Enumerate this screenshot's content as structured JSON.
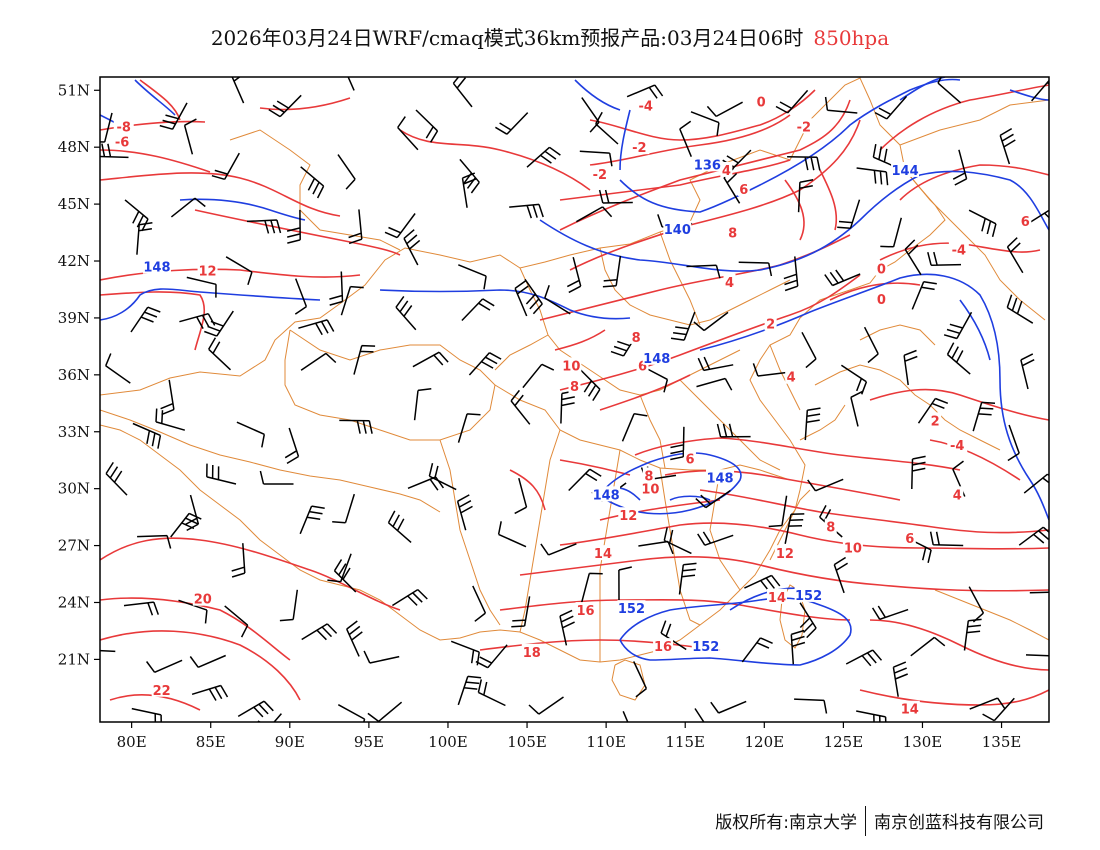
{
  "title": {
    "main": "2026年03月24日WRF/cmaq模式36km预报产品:03月24日06时",
    "level": "850hpa"
  },
  "axes": {
    "lat_labels": [
      "51N",
      "48N",
      "45N",
      "42N",
      "39N",
      "36N",
      "33N",
      "30N",
      "27N",
      "24N",
      "21N"
    ],
    "lon_labels": [
      "80E",
      "85E",
      "90E",
      "95E",
      "100E",
      "105E",
      "110E",
      "115E",
      "120E",
      "125E",
      "130E",
      "135E"
    ],
    "lon_range": [
      78,
      138
    ],
    "lat_range": [
      17.7,
      51.7
    ]
  },
  "contours": {
    "temperature_color": "#e8393a",
    "height_color": "#1f3ee0",
    "wind_color": "#000000",
    "border_color": "#e08a3a",
    "temperature_labels": [
      {
        "text": "-8",
        "lon": 79.5,
        "lat": 49.1
      },
      {
        "text": "-6",
        "lon": 79.4,
        "lat": 48.3
      },
      {
        "text": "-4",
        "lon": 112.5,
        "lat": 50.2
      },
      {
        "text": "0",
        "lon": 119.8,
        "lat": 50.4
      },
      {
        "text": "-2",
        "lon": 122.5,
        "lat": 49.1
      },
      {
        "text": "-2",
        "lon": 112.1,
        "lat": 48.0
      },
      {
        "text": "-2",
        "lon": 109.6,
        "lat": 46.6
      },
      {
        "text": "4",
        "lon": 117.6,
        "lat": 46.8
      },
      {
        "text": "6",
        "lon": 118.7,
        "lat": 45.8
      },
      {
        "text": "8",
        "lon": 118.0,
        "lat": 43.5
      },
      {
        "text": "4",
        "lon": 117.8,
        "lat": 40.9
      },
      {
        "text": "2",
        "lon": 120.4,
        "lat": 38.7
      },
      {
        "text": "4",
        "lon": 121.7,
        "lat": 35.9
      },
      {
        "text": "-4",
        "lon": 132.3,
        "lat": 42.6
      },
      {
        "text": "0",
        "lon": 127.4,
        "lat": 41.6
      },
      {
        "text": "0",
        "lon": 127.4,
        "lat": 40.0
      },
      {
        "text": "2",
        "lon": 130.8,
        "lat": 33.6
      },
      {
        "text": "-4",
        "lon": 132.2,
        "lat": 32.3
      },
      {
        "text": "6",
        "lon": 136.5,
        "lat": 44.1
      },
      {
        "text": "4",
        "lon": 132.2,
        "lat": 29.7
      },
      {
        "text": "12",
        "lon": 84.8,
        "lat": 41.5
      },
      {
        "text": "8",
        "lon": 111.9,
        "lat": 38.0
      },
      {
        "text": "6",
        "lon": 112.3,
        "lat": 36.5
      },
      {
        "text": "10",
        "lon": 107.8,
        "lat": 36.5
      },
      {
        "text": "8",
        "lon": 108.0,
        "lat": 35.4
      },
      {
        "text": "6",
        "lon": 115.3,
        "lat": 31.6
      },
      {
        "text": "8",
        "lon": 112.7,
        "lat": 30.7
      },
      {
        "text": "10",
        "lon": 112.8,
        "lat": 30.0
      },
      {
        "text": "12",
        "lon": 111.4,
        "lat": 28.6
      },
      {
        "text": "8",
        "lon": 124.2,
        "lat": 28.0
      },
      {
        "text": "6",
        "lon": 129.2,
        "lat": 27.4
      },
      {
        "text": "10",
        "lon": 125.6,
        "lat": 26.9
      },
      {
        "text": "12",
        "lon": 121.3,
        "lat": 26.6
      },
      {
        "text": "14",
        "lon": 109.8,
        "lat": 26.6
      },
      {
        "text": "14",
        "lon": 120.8,
        "lat": 24.3
      },
      {
        "text": "16",
        "lon": 108.7,
        "lat": 23.6
      },
      {
        "text": "16",
        "lon": 113.6,
        "lat": 21.7
      },
      {
        "text": "18",
        "lon": 105.3,
        "lat": 21.4
      },
      {
        "text": "20",
        "lon": 84.5,
        "lat": 24.2
      },
      {
        "text": "22",
        "lon": 81.9,
        "lat": 19.4
      },
      {
        "text": "14",
        "lon": 129.2,
        "lat": 18.4
      }
    ],
    "height_labels": [
      {
        "text": "136",
        "lon": 116.4,
        "lat": 47.1
      },
      {
        "text": "140",
        "lon": 114.5,
        "lat": 43.7
      },
      {
        "text": "144",
        "lon": 128.9,
        "lat": 46.8
      },
      {
        "text": "148",
        "lon": 81.6,
        "lat": 41.7
      },
      {
        "text": "148",
        "lon": 113.2,
        "lat": 36.9
      },
      {
        "text": "148",
        "lon": 117.2,
        "lat": 30.6
      },
      {
        "text": "148",
        "lon": 110.0,
        "lat": 29.7
      },
      {
        "text": "152",
        "lon": 111.6,
        "lat": 23.7
      },
      {
        "text": "152",
        "lon": 116.3,
        "lat": 21.7
      },
      {
        "text": "152",
        "lon": 122.8,
        "lat": 24.4
      }
    ]
  },
  "footer": {
    "left": "版权所有:南京大学",
    "right": "南京创蓝科技有限公司"
  }
}
